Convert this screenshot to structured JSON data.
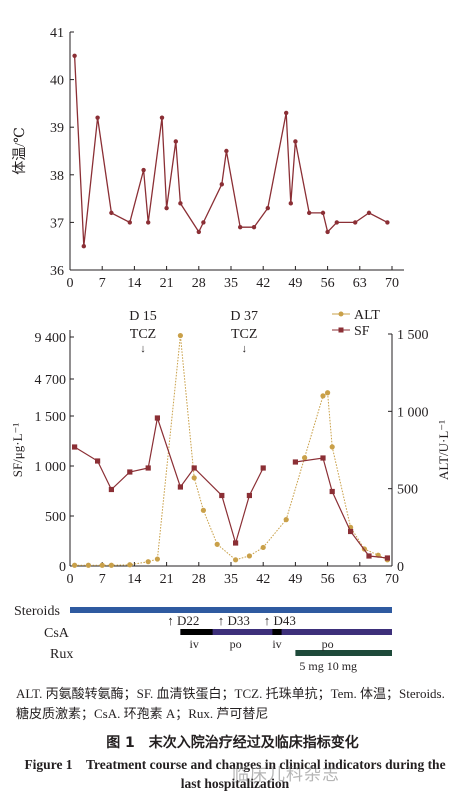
{
  "chart_data": [
    {
      "type": "line",
      "ylabel": "体温/℃",
      "xlim": [
        0,
        70
      ],
      "ylim": [
        36,
        41
      ],
      "x_ticks": [
        "0",
        "7",
        "14",
        "21",
        "28",
        "35",
        "42",
        "49",
        "56",
        "63",
        "70"
      ],
      "y_ticks": [
        "36",
        "37",
        "38",
        "39",
        "40",
        "41"
      ],
      "series": [
        {
          "color": "#8b2f35",
          "x": [
            1,
            3,
            6,
            9,
            13,
            16,
            17,
            20,
            21,
            23,
            24,
            28,
            29,
            33,
            34,
            37,
            40,
            43,
            47,
            48,
            49,
            52,
            55,
            56,
            58,
            62,
            65,
            69
          ],
          "y": [
            40.5,
            36.5,
            39.2,
            37.2,
            37.0,
            38.1,
            37.0,
            39.2,
            37.3,
            38.7,
            37.4,
            36.8,
            37.0,
            37.8,
            38.5,
            36.9,
            36.9,
            37.3,
            39.3,
            37.4,
            38.7,
            37.2,
            37.2,
            36.8,
            37.0,
            37.0,
            37.2,
            37.0
          ]
        }
      ]
    },
    {
      "type": "line",
      "ylabel": "SF/μg·L⁻¹",
      "y2label": "ALT/U·L⁻¹",
      "xlim": [
        0,
        70
      ],
      "x_ticks": [
        "0",
        "7",
        "14",
        "21",
        "28",
        "35",
        "42",
        "49",
        "56",
        "63",
        "70"
      ],
      "y_ticks": [
        "0",
        "500",
        "1 000",
        "1 500",
        "4 700",
        "9 400"
      ],
      "y2_ticks": [
        "0",
        "500",
        "1 000",
        "1 500"
      ],
      "y2lim": [
        0,
        1500
      ],
      "legend": [
        "ALT",
        "SF"
      ],
      "legend_position": "top-right",
      "annotations": [
        {
          "day": "D 15",
          "drug": "TCZ",
          "arrow": "↓",
          "x": 15
        },
        {
          "day": "D 37",
          "drug": "TCZ",
          "arrow": "↓",
          "x": 37
        }
      ],
      "series": [
        {
          "name": "ALT",
          "axis": "right",
          "color": "#c9a049",
          "marker": "circle",
          "segments": [
            {
              "x": [
                1,
                4,
                7,
                9,
                13,
                17,
                19,
                24,
                27,
                29,
                32,
                36,
                39,
                42,
                47,
                51,
                55,
                56,
                57,
                61,
                64,
                67,
                69
              ],
              "y": [
                5,
                5,
                5,
                5,
                8,
                28,
                45,
                1490,
                570,
                360,
                140,
                40,
                65,
                120,
                300,
                700,
                1100,
                1120,
                770,
                250,
                110,
                70,
                40
              ]
            }
          ]
        },
        {
          "name": "SF",
          "axis": "left",
          "color": "#8b2f35",
          "marker": "square",
          "segments": [
            {
              "x": [
                1,
                6,
                9,
                13,
                17,
                19,
                24,
                27,
                33,
                36,
                39,
                42
              ],
              "y": [
                1190,
                1050,
                765,
                940,
                980,
                1480,
                790,
                980,
                705,
                230,
                705,
                980
              ]
            },
            {
              "x": [
                49,
                55,
                57,
                61,
                65,
                69
              ],
              "y": [
                1040,
                1080,
                745,
                345,
                100,
                80
              ]
            }
          ]
        }
      ]
    }
  ],
  "timeline": {
    "rows": [
      {
        "label": "Steroids",
        "color": "#2f5aa0",
        "start": 0,
        "end": 70
      },
      {
        "label": "CsA",
        "color": "#3d2f7a",
        "start": 24,
        "end": 70
      },
      {
        "label": "Rux",
        "color": "#1e4a3a",
        "start": 49,
        "end": 70
      }
    ],
    "csa_iv_blocks": [
      {
        "start": 24,
        "end": 31
      },
      {
        "start": 44,
        "end": 46
      }
    ],
    "markers": [
      {
        "label": "↑ D22",
        "x": 22
      },
      {
        "label": "↑ D33",
        "x": 33
      },
      {
        "label": "↑ D43",
        "x": 43
      }
    ],
    "route_labels": [
      {
        "label": "iv",
        "x": 27
      },
      {
        "label": "po",
        "x": 36
      },
      {
        "label": "iv",
        "x": 45
      },
      {
        "label": "po",
        "x": 56
      }
    ],
    "dose_label": "5 mg 10 mg"
  },
  "captions": {
    "abbreviations": "ALT. 丙氨酸转氨酶；SF. 血清铁蛋白；TCZ. 托珠单抗；Tem. 体温；Steroids. 糖皮质激素；CsA. 环孢素 A；Rux. 芦可替尼",
    "title_cn": "图 1　末次入院治疗经过及临床指标变化",
    "title_en": "Figure 1　Treatment course and changes in clinical indicators during the last hospitalization",
    "watermark": "临床儿科杂志"
  }
}
